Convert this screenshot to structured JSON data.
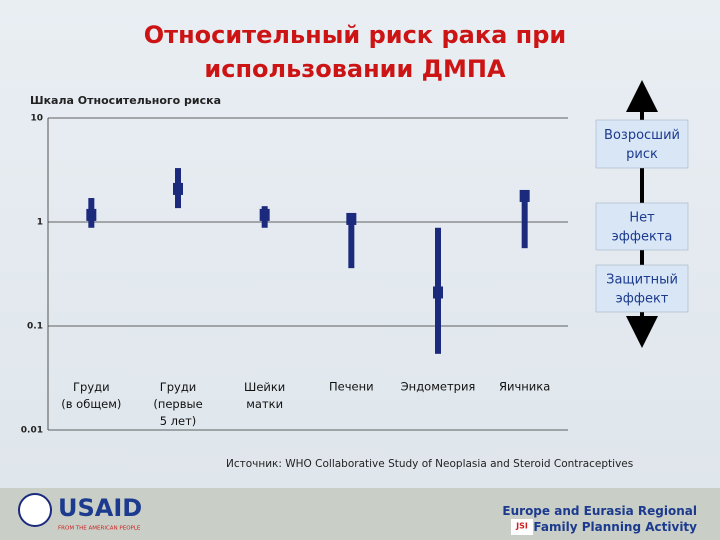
{
  "chart_data": {
    "type": "errorbar",
    "title": "Относительный риск рака при\nиспользовании  ДМПА",
    "y_label": "Шкала Относительного риска",
    "categories": [
      "Груди\n(в общем)",
      "Груди\n(первые\n5 лет)",
      "Шейки\nматки",
      "Печени",
      "Эндометрия",
      "Яичника"
    ],
    "values": [
      1.17,
      2.08,
      1.17,
      1.07,
      0.21,
      1.78
    ],
    "ci_low": [
      0.88,
      1.36,
      0.88,
      0.36,
      0.054,
      0.56
    ],
    "ci_high": [
      1.7,
      3.3,
      1.42,
      1.22,
      0.88,
      2.03
    ],
    "color": "#1c2a7e",
    "ylim": [
      0.01,
      10
    ],
    "yticks": [
      0.01,
      0.1,
      1,
      10
    ],
    "log_y": true,
    "grid": true,
    "scale_labels": [
      "Возросший\nриск",
      "Нет\nэффекта",
      "Защитный\nэффект"
    ],
    "source": "Источник: WHO Collaborative Study of Neoplasia and Steroid Contraceptives"
  },
  "footer": {
    "logo": "USAID",
    "logo_tagline": "FROM THE AMERICAN PEOPLE",
    "org": "Europe and Eurasia Regional\nFamily Planning Activity",
    "org_logo": "JSI"
  }
}
